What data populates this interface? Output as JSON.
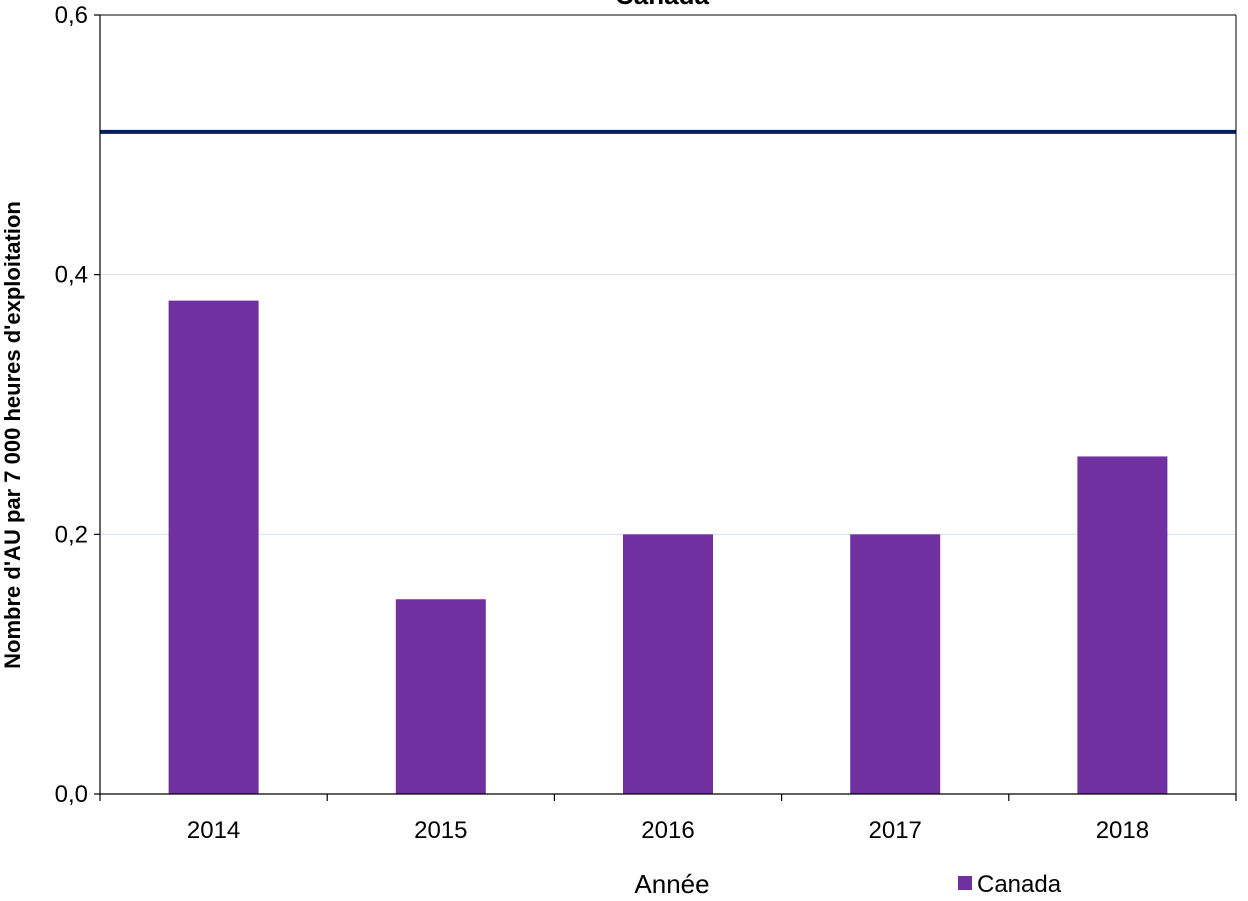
{
  "chart_data": {
    "type": "bar",
    "title": "Canada",
    "categories": [
      "2014",
      "2015",
      "2016",
      "2017",
      "2018"
    ],
    "series": [
      {
        "name": "Canada",
        "values": [
          0.38,
          0.15,
          0.2,
          0.2,
          0.26
        ]
      }
    ],
    "reference_line": {
      "value": 0.51
    },
    "xlabel": "Année",
    "ylabel": "Nombre d'AU par 7 000 heures d'exploitation",
    "ylim": [
      0,
      0.6
    ],
    "yticks": [
      "0,0",
      "0,2",
      "0,4",
      "0,6"
    ],
    "ytick_values": [
      0,
      0.2,
      0.4,
      0.6
    ],
    "grid": true,
    "legend_placement": "bottom-right",
    "colors": {
      "bar": "#7030A0",
      "reference_line": "#002060",
      "grid": "#D9E1F2"
    }
  }
}
